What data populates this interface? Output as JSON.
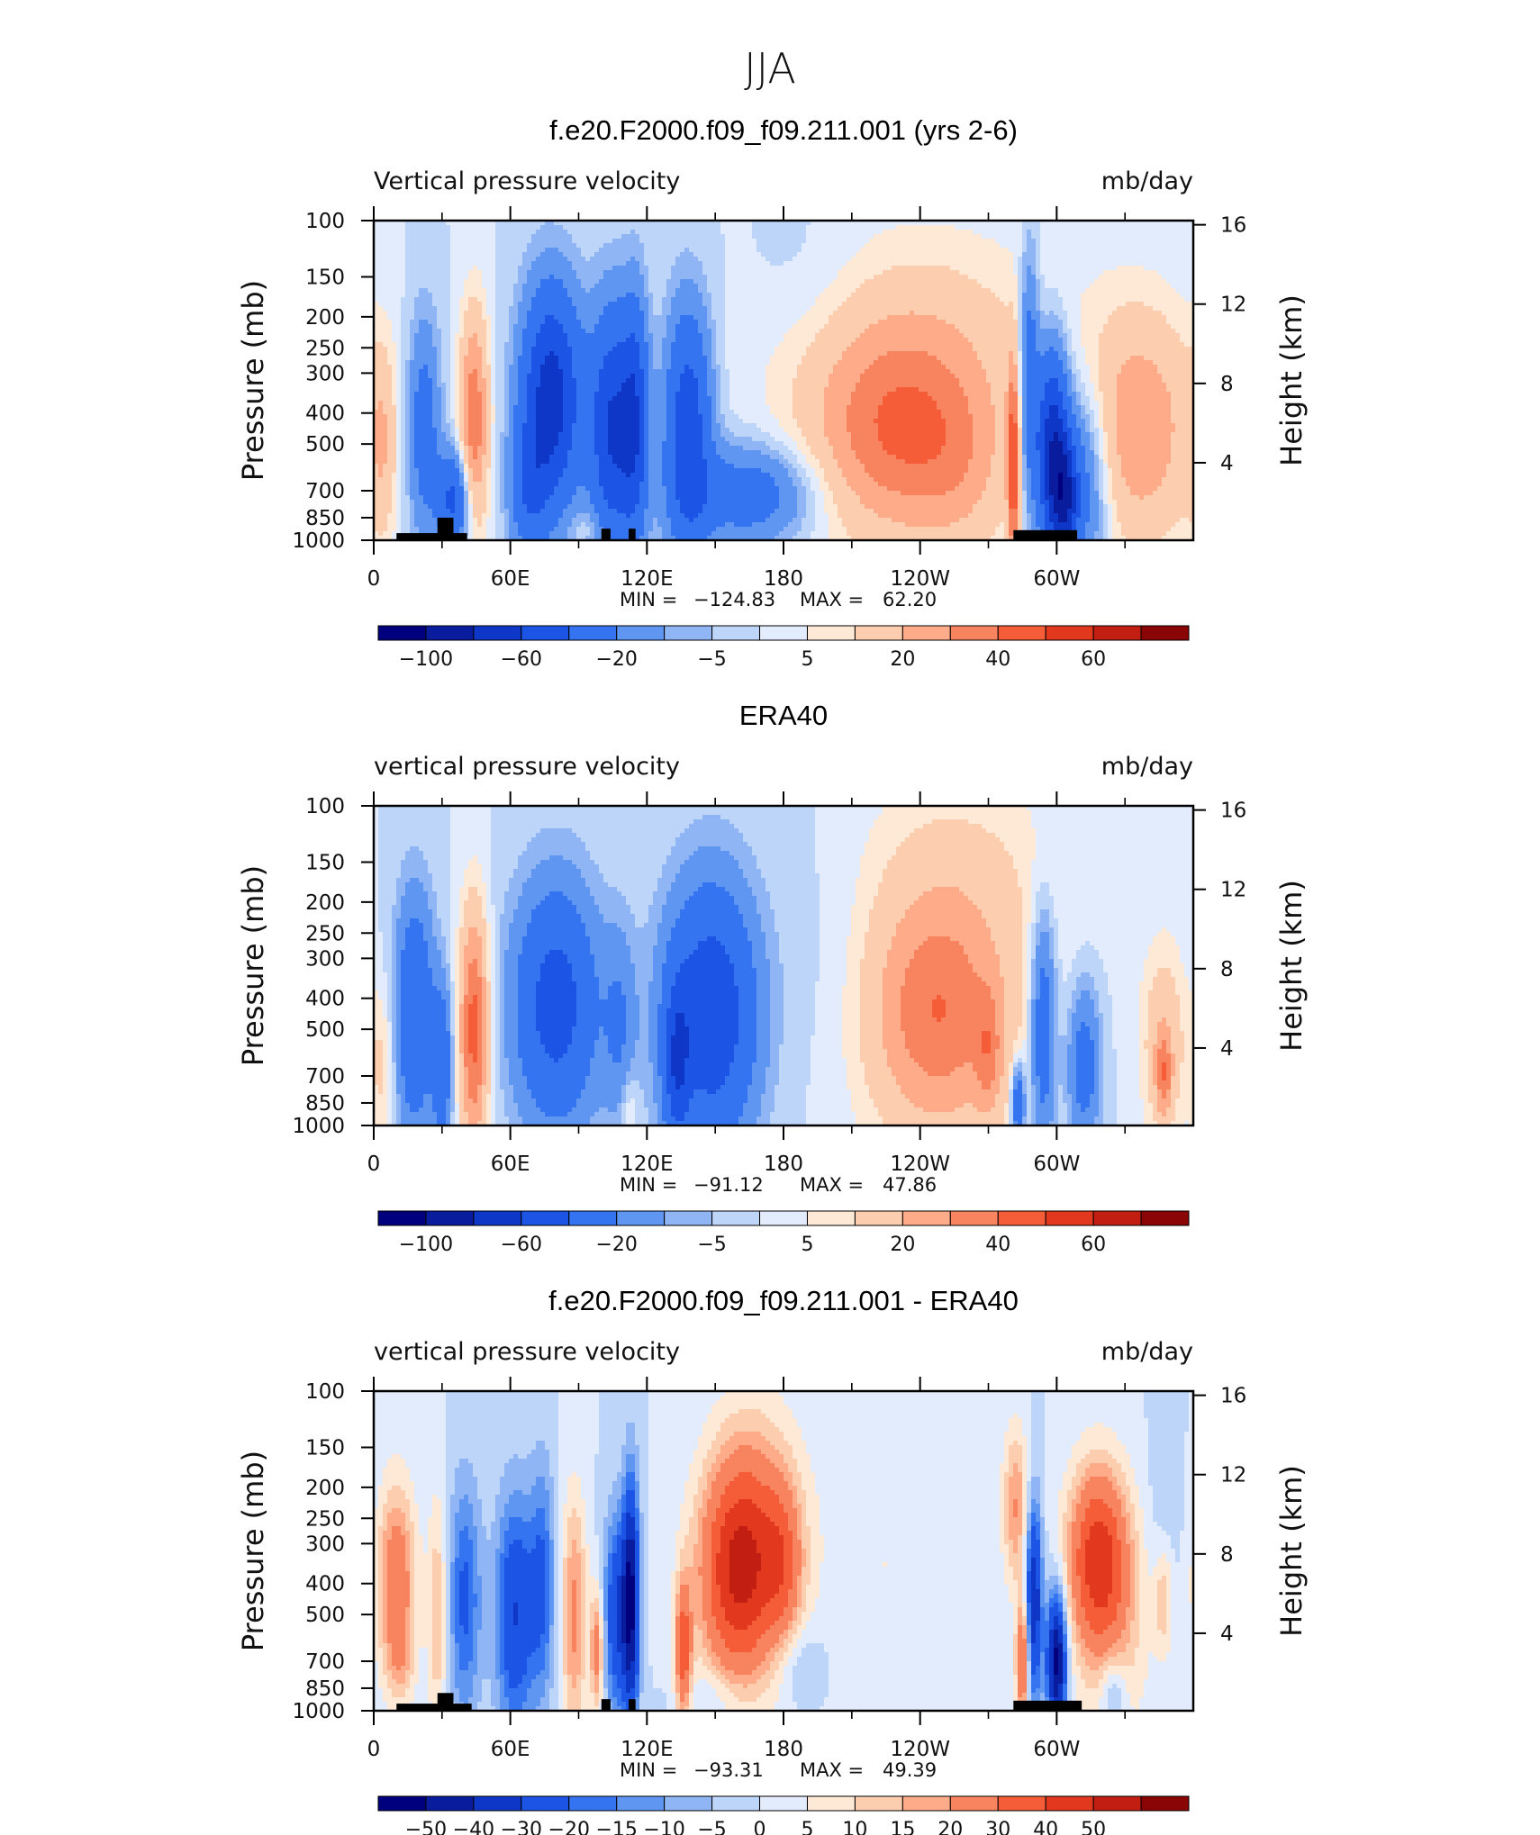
{
  "figure": {
    "title": "JJA"
  },
  "chart_data": [
    {
      "type": "heatmap",
      "title": "f.e20.F2000.f09_f09.211.001 (yrs 2-6)",
      "subtitle_left": "Vertical pressure velocity",
      "subtitle_right": "mb/day",
      "ylabel": "Pressure (mb)",
      "ylabel_right": "Height (km)",
      "x_tick_labels": [
        "0",
        "60E",
        "120E",
        "180",
        "120W",
        "60W"
      ],
      "y_tick_labels": [
        "100",
        "150",
        "200",
        "250",
        "300",
        "400",
        "500",
        "700",
        "850",
        "1000"
      ],
      "y_right_tick_labels": [
        "16",
        "12",
        "8",
        "4"
      ],
      "stats": {
        "min_label": "MIN =",
        "min": "−124.83",
        "max_label": "MAX =",
        "max": "62.20"
      },
      "colorbar_labels": [
        "−100",
        "−60",
        "−20",
        "−5",
        "5",
        "20",
        "40",
        "60"
      ],
      "features": [
        {
          "lon": 78,
          "p": 360,
          "sx": 9,
          "sy": 0.55,
          "v": -72
        },
        {
          "lon": 68,
          "p": 700,
          "sx": 6,
          "sy": 0.35,
          "v": -30
        },
        {
          "lon": 22,
          "p": 450,
          "sx": 5,
          "sy": 0.55,
          "v": -30
        },
        {
          "lon": 35,
          "p": 750,
          "sx": 5,
          "sy": 0.25,
          "v": -45
        },
        {
          "lon": 44,
          "p": 420,
          "sx": 4.5,
          "sy": 0.55,
          "v": 38
        },
        {
          "lon": 4,
          "p": 500,
          "sx": 4,
          "sy": 0.5,
          "v": 14
        },
        {
          "lon": 105,
          "p": 450,
          "sx": 7,
          "sy": 0.6,
          "v": -62
        },
        {
          "lon": 115,
          "p": 420,
          "sx": 4,
          "sy": 0.6,
          "v": -45
        },
        {
          "lon": 138,
          "p": 450,
          "sx": 7,
          "sy": 0.6,
          "v": -55
        },
        {
          "lon": 165,
          "p": 720,
          "sx": 20,
          "sy": 0.25,
          "v": -32
        },
        {
          "lon": 95,
          "p": 900,
          "sx": 6,
          "sy": 0.1,
          "v": 8
        },
        {
          "lon": 232,
          "p": 450,
          "sx": 26,
          "sy": 0.5,
          "v": 32
        },
        {
          "lon": 232,
          "p": 400,
          "sx": 40,
          "sy": 0.8,
          "v": 10
        },
        {
          "lon": 258,
          "p": 650,
          "sx": 14,
          "sy": 0.45,
          "v": 8
        },
        {
          "lon": 298,
          "p": 520,
          "sx": 5,
          "sy": 0.5,
          "v": -78
        },
        {
          "lon": 304,
          "p": 750,
          "sx": 4,
          "sy": 0.3,
          "v": -55
        },
        {
          "lon": 288,
          "p": 300,
          "sx": 3,
          "sy": 0.6,
          "v": -35
        },
        {
          "lon": 312,
          "p": 650,
          "sx": 8,
          "sy": 0.5,
          "v": -30
        },
        {
          "lon": 281,
          "p": 600,
          "sx": 1.8,
          "sy": 0.5,
          "v": 45
        },
        {
          "lon": 336,
          "p": 450,
          "sx": 18,
          "sy": 0.6,
          "v": 28
        },
        {
          "lon": 190,
          "p": 150,
          "sx": 18,
          "sy": 0.4,
          "v": -4
        },
        {
          "lon": 250,
          "p": 200,
          "sx": 45,
          "sy": 0.5,
          "v": 6
        }
      ],
      "terrain": [
        [
          10,
          41,
          950
        ],
        [
          28,
          35,
          850
        ],
        [
          100,
          104,
          920
        ],
        [
          112,
          115,
          920
        ],
        [
          281,
          309,
          930
        ]
      ]
    },
    {
      "type": "heatmap",
      "title": "ERA40",
      "subtitle_left": "vertical pressure velocity",
      "subtitle_right": "mb/day",
      "ylabel": "Pressure (mb)",
      "ylabel_right": "Height (km)",
      "x_tick_labels": [
        "0",
        "60E",
        "120E",
        "180",
        "120W",
        "60W"
      ],
      "y_tick_labels": [
        "100",
        "150",
        "200",
        "250",
        "300",
        "400",
        "500",
        "700",
        "850",
        "1000"
      ],
      "y_right_tick_labels": [
        "16",
        "12",
        "8",
        "4"
      ],
      "stats": {
        "min_label": "MIN =",
        "min": "−91.12",
        "max_label": "MAX =",
        "max": "47.86"
      },
      "colorbar_labels": [
        "−100",
        "−60",
        "−20",
        "−5",
        "5",
        "20",
        "40",
        "60"
      ],
      "features": [
        {
          "lon": 80,
          "p": 420,
          "sx": 13,
          "sy": 0.6,
          "v": -50
        },
        {
          "lon": 18,
          "p": 450,
          "sx": 6,
          "sy": 0.6,
          "v": -40
        },
        {
          "lon": 30,
          "p": 650,
          "sx": 3,
          "sy": 0.4,
          "v": -35
        },
        {
          "lon": 44,
          "p": 500,
          "sx": 4.5,
          "sy": 0.6,
          "v": 45
        },
        {
          "lon": 4,
          "p": 650,
          "sx": 4,
          "sy": 0.4,
          "v": 12
        },
        {
          "lon": 148,
          "p": 450,
          "sx": 14,
          "sy": 0.65,
          "v": -58
        },
        {
          "lon": 133,
          "p": 650,
          "sx": 4,
          "sy": 0.4,
          "v": -40
        },
        {
          "lon": 108,
          "p": 500,
          "sx": 5,
          "sy": 0.5,
          "v": -18
        },
        {
          "lon": 112,
          "p": 850,
          "sx": 3,
          "sy": 0.2,
          "v": 10
        },
        {
          "lon": 248,
          "p": 450,
          "sx": 20,
          "sy": 0.55,
          "v": 28
        },
        {
          "lon": 248,
          "p": 400,
          "sx": 32,
          "sy": 0.9,
          "v": 12
        },
        {
          "lon": 270,
          "p": 600,
          "sx": 4,
          "sy": 0.3,
          "v": 18
        },
        {
          "lon": 283,
          "p": 850,
          "sx": 2,
          "sy": 0.2,
          "v": -40
        },
        {
          "lon": 294,
          "p": 500,
          "sx": 4,
          "sy": 0.6,
          "v": -35
        },
        {
          "lon": 312,
          "p": 650,
          "sx": 5,
          "sy": 0.4,
          "v": -30
        },
        {
          "lon": 347,
          "p": 550,
          "sx": 7,
          "sy": 0.5,
          "v": 18
        },
        {
          "lon": 347,
          "p": 700,
          "sx": 2.5,
          "sy": 0.2,
          "v": 25
        },
        {
          "lon": 200,
          "p": 300,
          "sx": 18,
          "sy": 0.8,
          "v": -4
        },
        {
          "lon": 262,
          "p": 150,
          "sx": 35,
          "sy": 0.5,
          "v": 6
        }
      ],
      "terrain": []
    },
    {
      "type": "heatmap",
      "title": "f.e20.F2000.f09_f09.211.001 - ERA40",
      "subtitle_left": "vertical pressure velocity",
      "subtitle_right": "mb/day",
      "ylabel": "Pressure (mb)",
      "ylabel_right": "Height (km)",
      "x_tick_labels": [
        "0",
        "60E",
        "120E",
        "180",
        "120W",
        "60W"
      ],
      "y_tick_labels": [
        "100",
        "150",
        "200",
        "250",
        "300",
        "400",
        "500",
        "700",
        "850",
        "1000"
      ],
      "y_right_tick_labels": [
        "16",
        "12",
        "8",
        "4"
      ],
      "stats": {
        "min_label": "MIN =",
        "min": "−93.31",
        "max_label": "MAX =",
        "max": "49.39"
      },
      "colorbar_labels": [
        "−50",
        "−40",
        "−30",
        "−20",
        "−15",
        "−10",
        "−5",
        "0",
        "5",
        "10",
        "15",
        "20",
        "30",
        "40",
        "50"
      ],
      "features": [
        {
          "lon": 10,
          "p": 400,
          "sx": 6,
          "sy": 0.5,
          "v": 28
        },
        {
          "lon": 28,
          "p": 500,
          "sx": 3,
          "sy": 0.6,
          "v": 15
        },
        {
          "lon": 40,
          "p": 450,
          "sx": 5,
          "sy": 0.6,
          "v": -22
        },
        {
          "lon": 62,
          "p": 500,
          "sx": 6,
          "sy": 0.6,
          "v": -30
        },
        {
          "lon": 74,
          "p": 400,
          "sx": 4,
          "sy": 0.6,
          "v": -20
        },
        {
          "lon": 88,
          "p": 500,
          "sx": 4,
          "sy": 0.6,
          "v": 22
        },
        {
          "lon": 107,
          "p": 500,
          "sx": 4,
          "sy": 0.5,
          "v": -30
        },
        {
          "lon": 113,
          "p": 450,
          "sx": 2.5,
          "sy": 0.6,
          "v": -48
        },
        {
          "lon": 98,
          "p": 650,
          "sx": 2,
          "sy": 0.3,
          "v": 25
        },
        {
          "lon": 136,
          "p": 650,
          "sx": 2.5,
          "sy": 0.35,
          "v": 35
        },
        {
          "lon": 160,
          "p": 380,
          "sx": 12,
          "sy": 0.55,
          "v": 45
        },
        {
          "lon": 168,
          "p": 250,
          "sx": 14,
          "sy": 0.6,
          "v": 15
        },
        {
          "lon": 180,
          "p": 350,
          "sx": 6,
          "sy": 0.4,
          "v": 20
        },
        {
          "lon": 187,
          "p": 720,
          "sx": 8,
          "sy": 0.2,
          "v": -8
        },
        {
          "lon": 150,
          "p": 900,
          "sx": 10,
          "sy": 0.15,
          "v": -6
        },
        {
          "lon": 225,
          "p": 350,
          "sx": 25,
          "sy": 0.7,
          "v": 5
        },
        {
          "lon": 290,
          "p": 450,
          "sx": 2.5,
          "sy": 0.5,
          "v": -40
        },
        {
          "lon": 300,
          "p": 700,
          "sx": 3,
          "sy": 0.35,
          "v": -55
        },
        {
          "lon": 285,
          "p": 700,
          "sx": 2,
          "sy": 0.3,
          "v": 35
        },
        {
          "lon": 282,
          "p": 230,
          "sx": 4,
          "sy": 0.4,
          "v": 20
        },
        {
          "lon": 318,
          "p": 330,
          "sx": 9,
          "sy": 0.45,
          "v": 42
        },
        {
          "lon": 325,
          "p": 550,
          "sx": 12,
          "sy": 0.6,
          "v": 12
        },
        {
          "lon": 325,
          "p": 900,
          "sx": 4,
          "sy": 0.2,
          "v": -15
        },
        {
          "lon": 347,
          "p": 300,
          "sx": 5,
          "sy": 0.6,
          "v": -5
        },
        {
          "lon": 347,
          "p": 450,
          "sx": 3,
          "sy": 0.3,
          "v": 15
        },
        {
          "lon": 12,
          "p": 700,
          "sx": 4,
          "sy": 0.2,
          "v": 8
        }
      ],
      "terrain": [
        [
          10,
          43,
          950
        ],
        [
          28,
          35,
          880
        ],
        [
          100,
          104,
          920
        ],
        [
          112,
          115,
          920
        ],
        [
          281,
          311,
          930
        ]
      ]
    }
  ],
  "colors": {
    "abs_palette": [
      "#00007f",
      "#0a1c9e",
      "#0f37c7",
      "#1c55e6",
      "#3474f0",
      "#5e96f2",
      "#8fb5f5",
      "#bed5fa",
      "#e2ecfc",
      "#fde9d6",
      "#fdcdb0",
      "#fdab88",
      "#f7845f",
      "#f45d37",
      "#e2391e",
      "#c21f12",
      "#8a0606"
    ],
    "diff_palette": [
      "#00007f",
      "#0a1c9e",
      "#0f37c7",
      "#1c55e6",
      "#3474f0",
      "#5e96f2",
      "#8fb5f5",
      "#bed5fa",
      "#e2ecfc",
      "#fde9d6",
      "#fdcdb0",
      "#fdab88",
      "#f7845f",
      "#f45d37",
      "#e2391e",
      "#c21f12",
      "#8a0606"
    ]
  }
}
